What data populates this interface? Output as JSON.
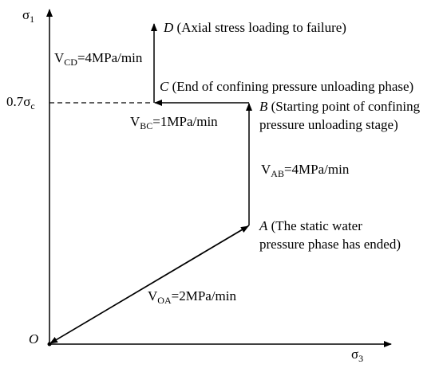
{
  "axes": {
    "y": {
      "symbol": "σ",
      "sub": "1"
    },
    "x": {
      "symbol": "σ",
      "sub": "3"
    },
    "level": {
      "prefix": "0.7σ",
      "sub": "c"
    }
  },
  "points": {
    "O": {
      "letter": "O"
    },
    "A": {
      "letter": "A",
      "lines": [
        " (The static water",
        "pressure phase has ended)"
      ]
    },
    "B": {
      "letter": "B",
      "lines": [
        " (Starting point of confining",
        "pressure unloading stage)"
      ]
    },
    "C": {
      "letter": "C",
      "lines": [
        " (End of confining pressure unloading phase)"
      ]
    },
    "D": {
      "letter": "D",
      "lines": [
        " (Axial stress loading to failure)"
      ]
    }
  },
  "rates": [
    {
      "symbol": "V",
      "sub": "CD",
      "text": "=4MPa/min"
    },
    {
      "symbol": "V",
      "sub": "BC",
      "text": "=1MPa/min"
    },
    {
      "symbol": "V",
      "sub": "AB",
      "text": "=4MPa/min"
    },
    {
      "symbol": "V",
      "sub": "OA",
      "text": "=2MPa/min"
    }
  ]
}
